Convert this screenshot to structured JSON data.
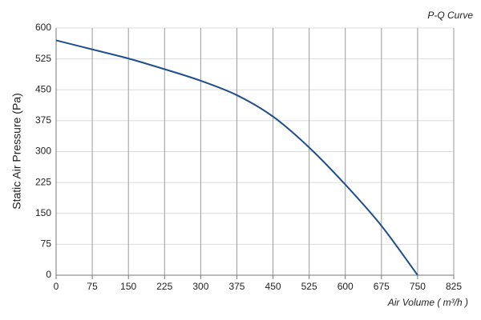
{
  "chart_data": {
    "type": "line",
    "title": "P-Q Curve",
    "x_label": "Air Volume ( m³/h )",
    "y_label": "Static Air Pressure  (Pa)",
    "x": [
      0,
      75,
      150,
      225,
      300,
      375,
      450,
      525,
      600,
      675,
      750
    ],
    "series": [
      {
        "color": "#1f4e8c",
        "values": [
          570,
          548,
          526,
          500,
          472,
          437,
          385,
          310,
          220,
          120,
          0
        ]
      }
    ],
    "xlim": [
      0,
      825
    ],
    "xticks": [
      0,
      75,
      150,
      225,
      300,
      375,
      450,
      525,
      600,
      675,
      750,
      825
    ],
    "ylim": [
      0,
      600
    ],
    "yticks": [
      0,
      75,
      150,
      225,
      300,
      375,
      450,
      525,
      600
    ],
    "grid": true
  }
}
